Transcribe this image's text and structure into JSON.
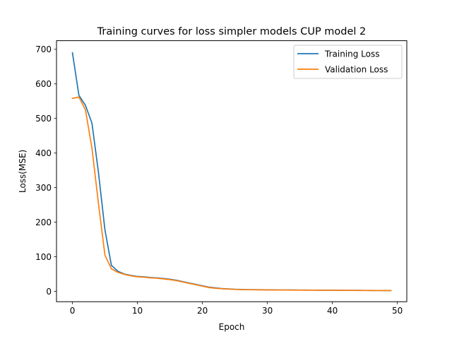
{
  "chart_data": {
    "type": "line",
    "title": "Training curves for loss simpler models CUP model 2",
    "xlabel": "Epoch",
    "ylabel": "Loss(MSE)",
    "xlim": [
      -2.45,
      51.45
    ],
    "ylim": [
      -30,
      725
    ],
    "xticks": [
      0,
      10,
      20,
      30,
      40,
      50
    ],
    "yticks": [
      0,
      100,
      200,
      300,
      400,
      500,
      600,
      700
    ],
    "grid": false,
    "legend_position": "top-right",
    "x": [
      0,
      1,
      2,
      3,
      4,
      5,
      6,
      7,
      8,
      9,
      10,
      11,
      12,
      13,
      14,
      15,
      16,
      17,
      18,
      19,
      20,
      21,
      22,
      23,
      24,
      25,
      26,
      27,
      28,
      29,
      30,
      31,
      32,
      33,
      34,
      35,
      36,
      37,
      38,
      39,
      40,
      41,
      42,
      43,
      44,
      45,
      46,
      47,
      48,
      49
    ],
    "series": [
      {
        "name": "Training Loss",
        "color": "#1f77b4",
        "values": [
          690,
          567,
          538,
          487,
          345,
          178,
          75,
          58,
          50,
          46,
          43,
          42,
          40,
          39,
          37,
          35,
          32,
          28,
          24,
          20,
          16,
          12,
          10,
          8,
          7,
          6,
          5.5,
          5,
          4.8,
          4.6,
          4.4,
          4.2,
          4,
          3.9,
          3.8,
          3.7,
          3.6,
          3.5,
          3.4,
          3.3,
          3.2,
          3.1,
          3.0,
          2.9,
          2.8,
          2.7,
          2.6,
          2.5,
          2.4,
          2.3
        ]
      },
      {
        "name": "Validation Loss",
        "color": "#ff7f0e",
        "values": [
          558,
          562,
          525,
          415,
          255,
          105,
          65,
          55,
          49,
          45,
          42,
          41,
          39,
          38,
          36,
          34,
          31,
          27,
          23,
          19,
          15,
          11,
          9,
          7.5,
          6.5,
          5.5,
          5,
          4.7,
          4.5,
          4.3,
          4.1,
          3.9,
          3.8,
          3.7,
          3.6,
          3.5,
          3.4,
          3.3,
          3.2,
          3.1,
          3.0,
          2.9,
          2.8,
          2.7,
          2.6,
          2.5,
          2.4,
          2.3,
          2.2,
          2.1
        ]
      }
    ]
  }
}
